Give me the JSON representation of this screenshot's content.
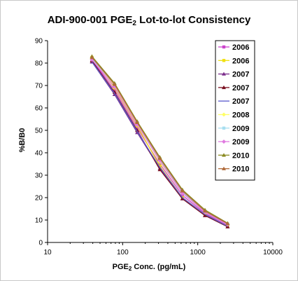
{
  "chart_data": {
    "type": "line",
    "title": {
      "prefix": "ADI-900-001 PGE",
      "subscript": "2",
      "suffix": " Lot-to-lot Consistency"
    },
    "xlabel": {
      "prefix": "PGE",
      "subscript": "2",
      "suffix": " Conc. (pg/mL)"
    },
    "ylabel": "%B/B0",
    "x_scale": "log",
    "xlim": [
      10,
      10000
    ],
    "ylim": [
      0,
      90
    ],
    "x_ticks": [
      "10",
      "100",
      "1000",
      "10000"
    ],
    "y_ticks": [
      "0",
      "10",
      "20",
      "30",
      "40",
      "50",
      "60",
      "70",
      "80",
      "90"
    ],
    "grid": false,
    "legend_position": "top-right inside",
    "x": [
      39,
      78,
      156,
      313,
      625,
      1250,
      2500
    ],
    "series": [
      {
        "name": "2006",
        "color": "#cc44cc",
        "marker": "square",
        "values": [
          81.5,
          68,
          51,
          35,
          21,
          13,
          7.5
        ]
      },
      {
        "name": "2006",
        "color": "#f0e010",
        "marker": "square",
        "values": [
          82.5,
          69,
          52,
          34,
          20,
          12.5,
          7.2
        ]
      },
      {
        "name": "2007",
        "color": "#7b2d8b",
        "marker": "triangle",
        "values": [
          80.5,
          66,
          49,
          33,
          19.5,
          12,
          7
        ]
      },
      {
        "name": "2007",
        "color": "#7a1020",
        "marker": "triangle",
        "values": [
          81,
          67,
          50,
          32.5,
          19.5,
          12,
          7
        ]
      },
      {
        "name": "2007",
        "color": "#5a5acc",
        "marker": "line",
        "values": [
          80.5,
          66.5,
          49.5,
          33.5,
          20,
          12.5,
          7.2
        ]
      },
      {
        "name": "2008",
        "color": "#ffff66",
        "marker": "diamond",
        "values": [
          82,
          70,
          53,
          36,
          22,
          13.5,
          8
        ]
      },
      {
        "name": "2009",
        "color": "#a8dff0",
        "marker": "square",
        "values": [
          82,
          70.5,
          53.5,
          37,
          22.5,
          14,
          8.3
        ]
      },
      {
        "name": "2009",
        "color": "#e07ae0",
        "marker": "diamond",
        "values": [
          81.5,
          69.5,
          52.5,
          36.5,
          22,
          13.5,
          8
        ]
      },
      {
        "name": "2010",
        "color": "#8a8a20",
        "marker": "triangle",
        "values": [
          83,
          71,
          54,
          38,
          23.5,
          14.5,
          8.6
        ]
      },
      {
        "name": "2010",
        "color": "#b06a3a",
        "marker": "triangle",
        "values": [
          82.5,
          70.5,
          53.5,
          37.5,
          23,
          14,
          8.4
        ]
      }
    ]
  }
}
